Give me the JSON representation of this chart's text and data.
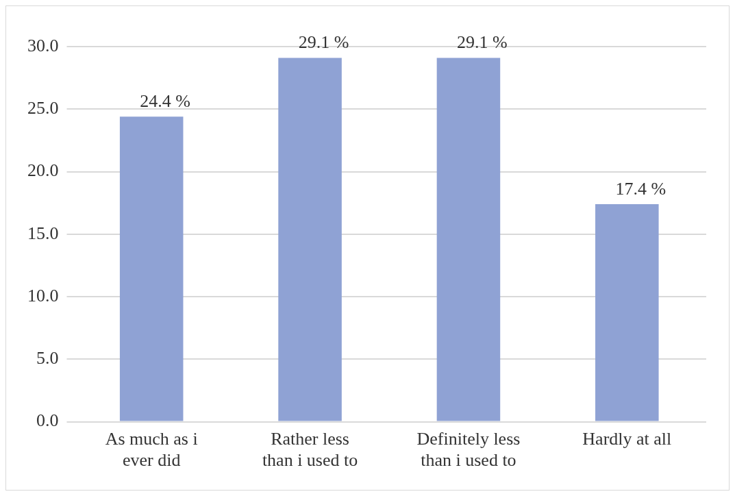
{
  "chart_data": {
    "type": "bar",
    "categories": [
      "As much as i ever did",
      "Rather less than i used to",
      "Definitely less than i used to",
      "Hardly at all"
    ],
    "values": [
      24.4,
      29.1,
      29.1,
      17.4
    ],
    "value_labels": [
      "24.4 %",
      "29.1 %",
      "29.1 %",
      "17.4 %"
    ],
    "color": "#8fa2d4",
    "ylim": [
      0,
      30
    ],
    "yticks": [
      {
        "value": 0,
        "label": "0.0"
      },
      {
        "value": 5,
        "label": "5.0"
      },
      {
        "value": 10,
        "label": "10.0"
      },
      {
        "value": 15,
        "label": "15.0"
      },
      {
        "value": 20,
        "label": "20.0"
      },
      {
        "value": 25,
        "label": "25.0"
      },
      {
        "value": 30,
        "label": "30.0"
      }
    ],
    "grid": "y"
  }
}
